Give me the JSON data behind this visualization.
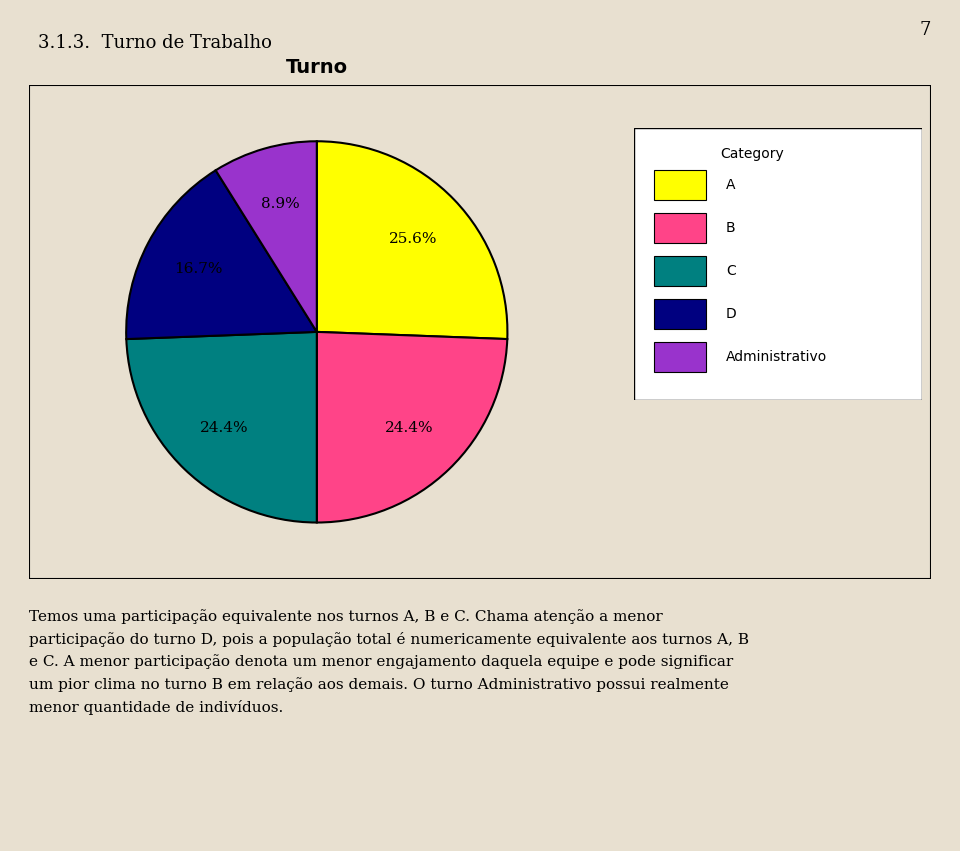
{
  "title": "Turno",
  "slices": [
    25.6,
    24.4,
    24.4,
    16.7,
    8.9
  ],
  "labels": [
    "A",
    "B",
    "C",
    "D",
    "Administrativo"
  ],
  "colors": [
    "#FFFF00",
    "#FF4488",
    "#008080",
    "#000080",
    "#9933CC"
  ],
  "pct_labels": [
    "25.6%",
    "24.4%",
    "24.4%",
    "16.7%",
    "8.9%"
  ],
  "legend_title": "Category",
  "background_color": "#E8E0D0",
  "title_fontsize": 14,
  "heading_text": "3.1.3.  Turno de Trabalho",
  "page_number": "7",
  "body_text": "Temos uma participação equivalente nos turnos A, B e C. Chama atenção a menor\nparticipação do turno D, pois a população total é numericamente equivalente aos turnos A, B\ne C. A menor participação denota um menor engajamento daquela equipe e pode significar\num pior clima no turno B em relação aos demais. O turno Administrativo possui realmente\nmenor quantidade de indivíduos."
}
